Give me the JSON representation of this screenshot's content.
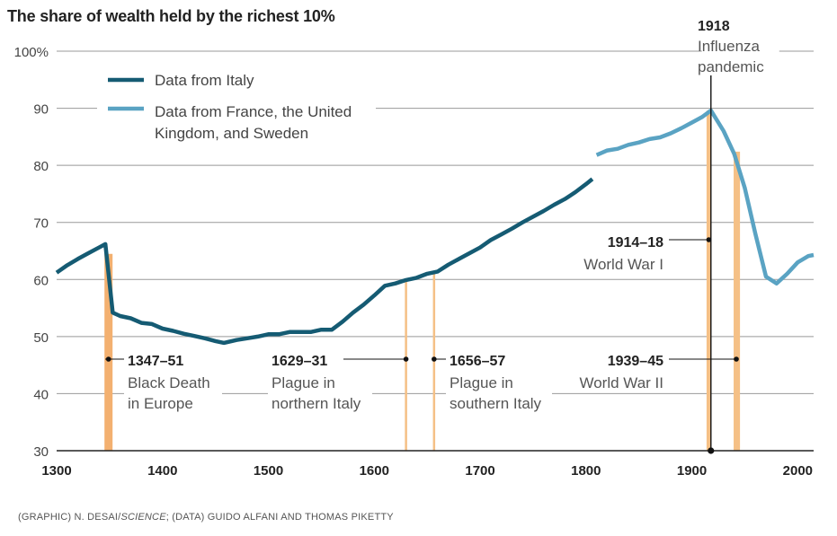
{
  "title": "The share of wealth held by the richest 10%",
  "credit": {
    "prefix": "(GRAPHIC) N. DESAI/",
    "italic": "SCIENCE",
    "suffix": "; (DATA) GUIDO ALFANI AND THOMAS PIKETTY"
  },
  "colors": {
    "italy": "#155b73",
    "france_uk_sweden": "#5aa3c3",
    "event_band": "#f5c086",
    "black_death_band": "#f3b070",
    "grid": "#999999",
    "marker": "#111111"
  },
  "chart_data": {
    "type": "line",
    "xlim": [
      1300,
      2015
    ],
    "ylim": [
      30,
      100
    ],
    "x_ticks": [
      1300,
      1400,
      1500,
      1600,
      1700,
      1800,
      1900,
      2000
    ],
    "y_ticks": [
      30,
      40,
      50,
      60,
      70,
      80,
      90,
      100
    ],
    "y_tick_labels": [
      "30",
      "40",
      "50",
      "60",
      "70",
      "80",
      "90",
      "100%"
    ],
    "grid": "horizontal",
    "legend": "top-left",
    "series": [
      {
        "name": "Data from Italy",
        "x": [
          1300,
          1310,
          1320,
          1330,
          1340,
          1346,
          1353,
          1360,
          1370,
          1380,
          1390,
          1400,
          1410,
          1420,
          1430,
          1440,
          1450,
          1458,
          1470,
          1480,
          1490,
          1500,
          1510,
          1520,
          1530,
          1540,
          1550,
          1560,
          1570,
          1580,
          1590,
          1600,
          1610,
          1620,
          1630,
          1640,
          1650,
          1660,
          1670,
          1680,
          1690,
          1700,
          1710,
          1720,
          1730,
          1740,
          1750,
          1760,
          1770,
          1780,
          1790,
          1800,
          1806
        ],
        "y": [
          61.2,
          62.5,
          63.6,
          64.6,
          65.6,
          66.2,
          54.2,
          53.6,
          53.2,
          52.4,
          52.2,
          51.4,
          51.0,
          50.5,
          50.1,
          49.7,
          49.2,
          48.9,
          49.4,
          49.7,
          50.0,
          50.4,
          50.4,
          50.8,
          50.8,
          50.8,
          51.2,
          51.2,
          52.6,
          54.2,
          55.6,
          57.2,
          58.9,
          59.3,
          59.9,
          60.3,
          61.0,
          61.4,
          62.6,
          63.6,
          64.6,
          65.6,
          66.9,
          67.9,
          68.9,
          70.0,
          71.0,
          72.0,
          73.1,
          74.1,
          75.3,
          76.7,
          77.6
        ]
      },
      {
        "name": "Data from France, the United Kingdom, and Sweden",
        "x": [
          1810,
          1820,
          1830,
          1840,
          1850,
          1860,
          1870,
          1880,
          1890,
          1900,
          1910,
          1918,
          1930,
          1940,
          1950,
          1960,
          1970,
          1980,
          1990,
          2000,
          2010,
          2015
        ],
        "y": [
          81.8,
          82.6,
          82.9,
          83.6,
          84.0,
          84.6,
          84.9,
          85.6,
          86.5,
          87.5,
          88.5,
          89.6,
          86.0,
          82.0,
          76.0,
          68.0,
          60.5,
          59.3,
          61.0,
          63.0,
          64.1,
          64.3
        ]
      }
    ],
    "events": [
      {
        "year_label": "1347–51",
        "desc": [
          "Black Death",
          "in Europe"
        ],
        "start": 1347,
        "end": 1351
      },
      {
        "year_label": "1629–31",
        "desc": [
          "Plague in",
          "northern Italy"
        ],
        "start": 1629,
        "end": 1631
      },
      {
        "year_label": "1656–57",
        "desc": [
          "Plague in",
          "southern Italy"
        ],
        "start": 1656,
        "end": 1657
      },
      {
        "year_label": "1914–18",
        "desc": [
          "World War I"
        ],
        "start": 1914,
        "end": 1918
      },
      {
        "year_label": "1939–45",
        "desc": [
          "World War II"
        ],
        "start": 1939,
        "end": 1945
      },
      {
        "year_label": "1918",
        "desc": [
          "Influenza",
          "pandemic"
        ],
        "start": 1918,
        "end": 1918
      }
    ]
  }
}
